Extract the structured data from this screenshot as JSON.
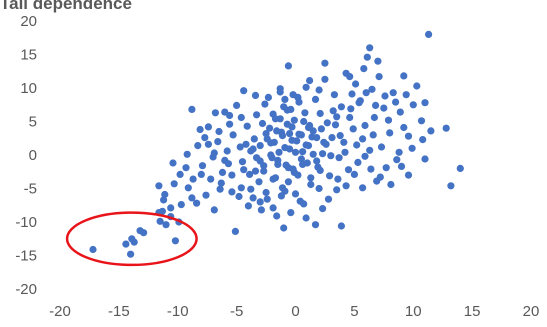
{
  "chart_data": {
    "type": "scatter",
    "title": "Tail dependence",
    "xlabel": "",
    "ylabel": "",
    "xlim": [
      -20,
      20
    ],
    "ylim": [
      -20,
      20
    ],
    "x_ticks": [
      -20,
      -15,
      -10,
      -5,
      0,
      5,
      10,
      15,
      20
    ],
    "y_ticks": [
      20,
      15,
      10,
      5,
      0,
      -5,
      -10,
      -15,
      -20
    ],
    "x_tick_labels": [
      "-20",
      "-15",
      "-10",
      "-5",
      "0",
      "5",
      "10",
      "15",
      "20"
    ],
    "y_tick_labels": [
      "20",
      "15",
      "10",
      "5",
      "0",
      "-5",
      "-10",
      "-15",
      "-20"
    ],
    "grid": false,
    "legend": "none",
    "marker_color": "#4472C4",
    "annotation_color": "#E8141A",
    "highlight_region": {
      "shape": "ellipse",
      "center_x": -13.9,
      "center_y": -12.5,
      "radius_x": 5.5,
      "radius_y": 3.9
    },
    "points": [
      [
        -17.2,
        -14.1
      ],
      [
        -14.0,
        -14.8
      ],
      [
        -14.4,
        -13.3
      ],
      [
        -13.9,
        -12.5
      ],
      [
        -13.7,
        -13.0
      ],
      [
        -13.2,
        -11.3
      ],
      [
        -12.9,
        -11.6
      ],
      [
        -11.6,
        -8.6
      ],
      [
        -11.5,
        -9.9
      ],
      [
        -11.3,
        -8.4
      ],
      [
        -11.2,
        -6.7
      ],
      [
        -11.0,
        -10.4
      ],
      [
        -10.6,
        -9.2
      ],
      [
        -10.6,
        -7.9
      ],
      [
        -10.2,
        -12.8
      ],
      [
        -9.9,
        -10.0
      ],
      [
        -11.6,
        -4.6
      ],
      [
        -11.1,
        -5.9
      ],
      [
        -10.3,
        -4.3
      ],
      [
        -9.7,
        -7.4
      ],
      [
        -9.1,
        -4.9
      ],
      [
        -9.3,
        -1.9
      ],
      [
        -8.8,
        -6.4
      ],
      [
        -8.4,
        -7.2
      ],
      [
        -8.0,
        -2.9
      ],
      [
        -7.6,
        -6.0
      ],
      [
        -7.2,
        -3.6
      ],
      [
        -6.9,
        -8.2
      ],
      [
        -6.4,
        -5.1
      ],
      [
        -6.0,
        -0.8
      ],
      [
        -5.7,
        -1.3
      ],
      [
        -5.1,
        -11.4
      ],
      [
        -5.4,
        -3.0
      ],
      [
        -4.8,
        -6.2
      ],
      [
        -4.4,
        -2.2
      ],
      [
        -4.0,
        -7.6
      ],
      [
        -8.8,
        6.8
      ],
      [
        -7.7,
        2.6
      ],
      [
        -7.4,
        1.6
      ],
      [
        -6.9,
        0.3
      ],
      [
        -6.5,
        3.5
      ],
      [
        -6.0,
        6.4
      ],
      [
        -5.6,
        5.9
      ],
      [
        -5.3,
        3.0
      ],
      [
        -5.0,
        7.4
      ],
      [
        -4.7,
        1.2
      ],
      [
        -4.4,
        9.6
      ],
      [
        -4.1,
        4.3
      ],
      [
        -3.8,
        0.6
      ],
      [
        -3.5,
        2.4
      ],
      [
        -3.3,
        6.0
      ],
      [
        -3.0,
        -0.9
      ],
      [
        -2.8,
        4.7
      ],
      [
        -2.5,
        3.2
      ],
      [
        -2.3,
        8.6
      ],
      [
        -2.1,
        1.8
      ],
      [
        -1.9,
        -3.6
      ],
      [
        -1.7,
        5.4
      ],
      [
        -1.5,
        -1.4
      ],
      [
        -1.3,
        9.4
      ],
      [
        -1.1,
        2.9
      ],
      [
        -0.9,
        -5.4
      ],
      [
        -0.7,
        6.7
      ],
      [
        -0.5,
        0.9
      ],
      [
        -0.3,
        4.2
      ],
      [
        -0.1,
        -2.6
      ],
      [
        0.1,
        2.1
      ],
      [
        0.3,
        7.9
      ],
      [
        0.5,
        -0.6
      ],
      [
        0.7,
        5.0
      ],
      [
        0.9,
        10.1
      ],
      [
        1.1,
        1.4
      ],
      [
        1.3,
        -4.4
      ],
      [
        1.5,
        3.6
      ],
      [
        1.7,
        8.3
      ],
      [
        1.9,
        -1.8
      ],
      [
        2.1,
        6.2
      ],
      [
        2.3,
        0.2
      ],
      [
        2.5,
        11.3
      ],
      [
        2.7,
        4.8
      ],
      [
        2.9,
        -3.1
      ],
      [
        3.1,
        2.6
      ],
      [
        3.3,
        9.0
      ],
      [
        3.5,
        5.7
      ],
      [
        3.7,
        -0.4
      ],
      [
        3.9,
        7.2
      ],
      [
        4.1,
        1.9
      ],
      [
        4.3,
        12.2
      ],
      [
        4.5,
        -2.2
      ],
      [
        4.7,
        6.9
      ],
      [
        4.9,
        3.9
      ],
      [
        5.1,
        10.6
      ],
      [
        5.3,
        -1.1
      ],
      [
        5.5,
        8.1
      ],
      [
        5.7,
        2.4
      ],
      [
        5.9,
        4.4
      ],
      [
        6.1,
        14.6
      ],
      [
        6.3,
        0.7
      ],
      [
        6.5,
        9.8
      ],
      [
        6.7,
        5.6
      ],
      [
        6.9,
        -3.9
      ],
      [
        7.1,
        11.7
      ],
      [
        7.3,
        1.2
      ],
      [
        7.5,
        7.0
      ],
      [
        7.7,
        -1.9
      ],
      [
        8.0,
        3.3
      ],
      [
        8.3,
        9.3
      ],
      [
        8.6,
        -0.7
      ],
      [
        8.9,
        6.4
      ],
      [
        9.2,
        4.1
      ],
      [
        9.6,
        -3.0
      ],
      [
        9.9,
        1.0
      ],
      [
        10.3,
        10.3
      ],
      [
        10.7,
        5.1
      ],
      [
        11.0,
        -0.6
      ],
      [
        11.3,
        18.0
      ],
      [
        11.0,
        7.8
      ],
      [
        11.5,
        3.6
      ],
      [
        12.8,
        4.0
      ],
      [
        13.2,
        -4.6
      ],
      [
        14.0,
        -2.0
      ],
      [
        6.3,
        16.0
      ],
      [
        4.6,
        11.7
      ],
      [
        3.5,
        -5.2
      ],
      [
        3.9,
        -10.6
      ],
      [
        2.5,
        13.7
      ],
      [
        -0.6,
        13.3
      ],
      [
        -1.3,
        9.9
      ],
      [
        -6.8,
        6.3
      ],
      [
        5.8,
        12.9
      ],
      [
        7.0,
        14.0
      ],
      [
        9.2,
        11.8
      ],
      [
        -3.8,
        -5.1
      ],
      [
        -3.4,
        -2.4
      ],
      [
        -3.1,
        -4.0
      ],
      [
        -2.7,
        -1.6
      ],
      [
        -2.4,
        -6.6
      ],
      [
        -2.0,
        -0.4
      ],
      [
        -1.7,
        -3.4
      ],
      [
        -1.4,
        0.4
      ],
      [
        -1.1,
        -4.9
      ],
      [
        -0.8,
        -1.5
      ],
      [
        -0.5,
        3.2
      ],
      [
        -0.2,
        -2.1
      ],
      [
        0.2,
        -3.0
      ],
      [
        0.6,
        0.5
      ],
      [
        1.0,
        -1.2
      ],
      [
        1.4,
        2.7
      ],
      [
        1.8,
        -0.9
      ],
      [
        2.2,
        3.9
      ],
      [
        2.6,
        1.6
      ],
      [
        3.0,
        -0.1
      ],
      [
        3.4,
        4.5
      ],
      [
        3.8,
        2.9
      ],
      [
        4.2,
        0.4
      ],
      [
        4.6,
        5.6
      ],
      [
        -4.5,
        -1.0
      ],
      [
        -4.2,
        1.6
      ],
      [
        -3.9,
        -2.9
      ],
      [
        -3.6,
        0.9
      ],
      [
        -3.3,
        -0.4
      ],
      [
        -3.0,
        1.4
      ],
      [
        -2.7,
        -2.4
      ],
      [
        -2.4,
        2.4
      ],
      [
        -2.1,
        0.0
      ],
      [
        -1.8,
        1.9
      ],
      [
        -1.5,
        -0.8
      ],
      [
        -1.2,
        3.4
      ],
      [
        -0.9,
        1.1
      ],
      [
        -0.6,
        -1.9
      ],
      [
        -0.3,
        2.2
      ],
      [
        0.0,
        0.4
      ],
      [
        0.3,
        3.1
      ],
      [
        0.6,
        -1.4
      ],
      [
        0.9,
        1.5
      ],
      [
        1.2,
        4.4
      ],
      [
        1.5,
        0.1
      ],
      [
        1.8,
        2.6
      ],
      [
        2.1,
        -2.3
      ],
      [
        2.4,
        1.9
      ],
      [
        -2.2,
        4.0
      ],
      [
        -1.9,
        6.1
      ],
      [
        -1.6,
        3.6
      ],
      [
        -1.3,
        5.4
      ],
      [
        -1.0,
        7.2
      ],
      [
        -0.7,
        4.6
      ],
      [
        -0.4,
        6.8
      ],
      [
        -0.1,
        5.2
      ],
      [
        0.2,
        8.6
      ],
      [
        0.5,
        3.0
      ],
      [
        0.8,
        6.3
      ],
      [
        1.1,
        4.1
      ],
      [
        -3.0,
        -7.0
      ],
      [
        -2.5,
        -5.6
      ],
      [
        -1.9,
        -7.9
      ],
      [
        -1.2,
        -6.1
      ],
      [
        -0.6,
        -4.0
      ],
      [
        0.0,
        -5.8
      ],
      [
        0.7,
        -7.3
      ],
      [
        1.3,
        -3.4
      ],
      [
        2.0,
        -5.0
      ],
      [
        2.8,
        -6.6
      ],
      [
        3.6,
        -3.6
      ],
      [
        4.3,
        -4.6
      ],
      [
        5.0,
        -2.9
      ],
      [
        5.7,
        -4.9
      ],
      [
        6.4,
        -2.1
      ],
      [
        7.2,
        -3.3
      ],
      [
        8.1,
        -4.4
      ],
      [
        9.0,
        -1.7
      ],
      [
        -5.8,
        0.6
      ],
      [
        -6.2,
        -2.6
      ],
      [
        -6.6,
        2.0
      ],
      [
        -7.0,
        -0.3
      ],
      [
        -7.4,
        4.2
      ],
      [
        -7.9,
        -1.6
      ],
      [
        -8.3,
        1.4
      ],
      [
        -8.7,
        -3.6
      ],
      [
        -9.2,
        0.1
      ],
      [
        -9.8,
        -2.9
      ],
      [
        -10.4,
        -1.2
      ],
      [
        -8.1,
        3.8
      ],
      [
        5.4,
        7.8
      ],
      [
        6.0,
        9.3
      ],
      [
        6.8,
        7.4
      ],
      [
        7.6,
        8.8
      ],
      [
        8.5,
        7.9
      ],
      [
        9.4,
        9.0
      ],
      [
        10.0,
        7.5
      ],
      [
        10.8,
        2.3
      ],
      [
        9.6,
        2.8
      ],
      [
        8.8,
        0.4
      ],
      [
        7.9,
        5.2
      ],
      [
        6.6,
        3.0
      ],
      [
        5.9,
        -0.2
      ],
      [
        5.2,
        1.5
      ],
      [
        4.8,
        9.1
      ],
      [
        3.2,
        6.6
      ],
      [
        2.0,
        9.7
      ],
      [
        1.2,
        11.1
      ],
      [
        -0.2,
        9.0
      ],
      [
        -0.9,
        8.3
      ],
      [
        -2.6,
        7.6
      ],
      [
        -3.4,
        8.9
      ],
      [
        -4.6,
        5.6
      ],
      [
        -5.6,
        4.6
      ],
      [
        -6.3,
        -4.2
      ],
      [
        -5.4,
        -5.5
      ],
      [
        -4.6,
        -4.9
      ],
      [
        -3.6,
        -6.4
      ],
      [
        -2.9,
        -8.2
      ],
      [
        -1.6,
        -9.1
      ],
      [
        -0.4,
        -8.6
      ],
      [
        0.9,
        -9.4
      ],
      [
        2.3,
        -8.0
      ],
      [
        1.7,
        -10.4
      ],
      [
        -1.0,
        -10.9
      ],
      [
        0.4,
        -6.9
      ]
    ]
  }
}
